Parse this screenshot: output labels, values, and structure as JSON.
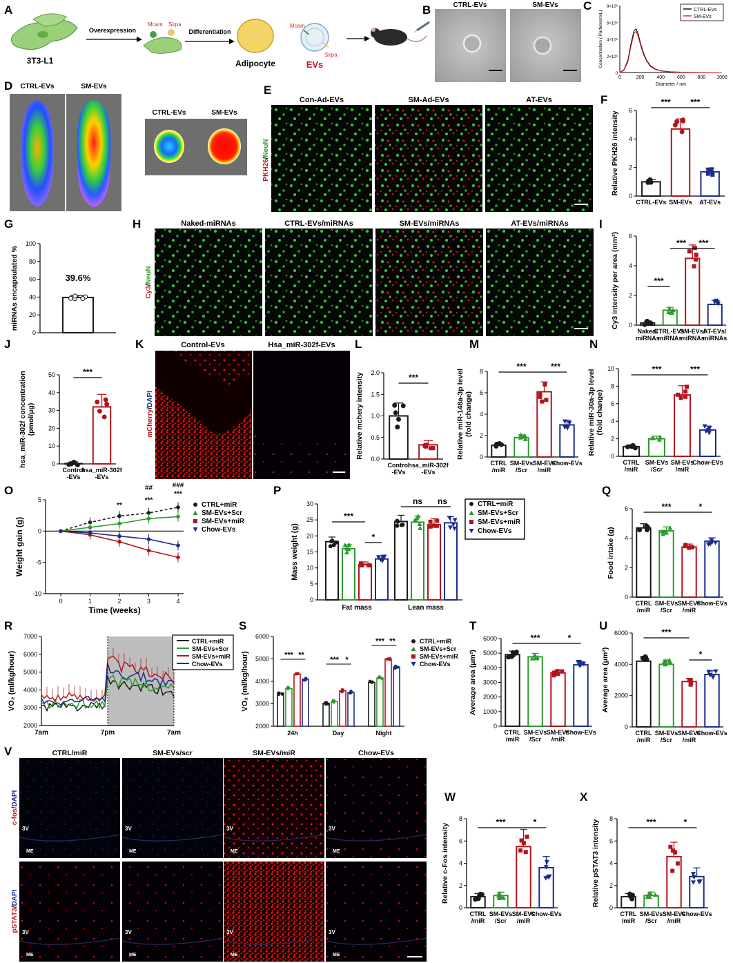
{
  "panels": {
    "A": {
      "letter": "A",
      "cell": "3T3-L1",
      "overexpression": "Overexpression",
      "mcam": "Mcam",
      "sirpa": "Sirpa",
      "differentiation": "Differentiation",
      "adipocyte": "Adipocyte",
      "mcam2": "Mcam",
      "sirpa2": "Sirpa",
      "evs": "EVs"
    },
    "B": {
      "letter": "B",
      "left": "CTRL-EVs",
      "right": "SM-EVs"
    },
    "C": {
      "letter": "C",
      "ylabel": "Concentration ( Particles/mL)",
      "xlabel": "Diameter / nm",
      "legend": [
        "CTRL-EVs",
        "SM-EVs"
      ],
      "yticks": [
        "8×10⁶",
        "6×10⁶",
        "4×10⁶",
        "2×10⁶",
        "0"
      ],
      "xticks": [
        "0",
        "200",
        "400",
        "600",
        "800",
        "1000"
      ]
    },
    "D": {
      "letter": "D",
      "left": "CTRL-EVs",
      "right": "SM-EVs",
      "organ_left": "CTRL-EVs",
      "organ_right": "SM-EVs"
    },
    "E": {
      "letter": "E",
      "titles": [
        "Con-Ad-EVs",
        "SM-Ad-EVs",
        "AT-EVs"
      ],
      "side_a": "PKH26",
      "side_sep": "/",
      "side_b": "NeuN"
    },
    "F": {
      "letter": "F",
      "ylabel": "Relative PKH26 intensity",
      "cats": [
        "CTRL-EVs",
        "SM-EVs",
        "AT-EVs"
      ],
      "yticks": [
        "0",
        "2",
        "4",
        "6"
      ],
      "sig": [
        "***",
        "***"
      ]
    },
    "G": {
      "letter": "G",
      "ylabel": "miRNAs encapsulated %",
      "value_label": "39.6%",
      "yticks": [
        "0",
        "20",
        "40",
        "60",
        "80",
        "100"
      ]
    },
    "H": {
      "letter": "H",
      "titles": [
        "Naked-miRNAs",
        "CTRL-EVs/miRNAs",
        "SM-EVs/miRNAs",
        "AT-EVs/miRNAs"
      ],
      "side_a": "Cy3",
      "side_sep": "/",
      "side_b": "NeuN"
    },
    "I": {
      "letter": "I",
      "ylabel": "Cy3 intensity per area (mm²)",
      "cats": [
        "Naked/ miRNAs",
        "CTRL-EVs/ miRNAs",
        "SM-EVs/ miRNAs",
        "AT-EVs/ miRNAs"
      ],
      "yticks": [
        "0",
        "2",
        "4",
        "6"
      ],
      "sig": [
        "***",
        "***",
        "***"
      ]
    },
    "J": {
      "letter": "J",
      "ylabel1": "hsa_miR-302f concentration",
      "ylabel2": "(pmol/μg)",
      "cats": [
        "Control -EVs",
        "hsa_miR-302f -EVs"
      ],
      "yticks": [
        "0",
        "10",
        "20",
        "30",
        "40",
        "50"
      ],
      "sig": [
        "***"
      ]
    },
    "K": {
      "letter": "K",
      "titles": [
        "Control-EVs",
        "Hsa_miR-302f-EVs"
      ],
      "side_a": "mCherry",
      "side_sep": "/",
      "side_b": "DAPI"
    },
    "L": {
      "letter": "L",
      "ylabel": "Relative mchery intensity",
      "cats": [
        "Control -EVs",
        "hsa_miR-302f -EVs"
      ],
      "yticks": [
        "0.0",
        "0.5",
        "1.0",
        "1.5",
        "2.0"
      ],
      "sig": [
        "***"
      ]
    },
    "M": {
      "letter": "M",
      "ylabel1": "Relative miR-148a-3p level",
      "ylabel2": "(fold change)",
      "cats": [
        "CTRL /miR",
        "SM-EVs /Scr",
        "SM-EVs /miR",
        "Chow-EVs"
      ],
      "yticks": [
        "0",
        "2",
        "4",
        "6",
        "8"
      ],
      "sig": [
        "***",
        "***"
      ]
    },
    "N": {
      "letter": "N",
      "ylabel1": "Relative miR-30a-3p level",
      "ylabel2": "(fold change)",
      "cats": [
        "CTRL /miR",
        "SM-EVs /Scr",
        "SM-EVs /miR",
        "Chow-EVs"
      ],
      "yticks": [
        "0",
        "2",
        "4",
        "6",
        "8",
        "10"
      ],
      "sig": [
        "***",
        "***"
      ]
    },
    "O": {
      "letter": "O",
      "ylabel": "Weight gain (g)",
      "xlabel": "Time (weeks)",
      "xticks": [
        "0",
        "1",
        "2",
        "3",
        "4"
      ],
      "yticks": [
        "5",
        "0",
        "-5",
        "-10"
      ],
      "legend": [
        "CTRL+miR",
        "SM-EVs+Scr",
        "SM-EVs+miR",
        "Chow-EVs"
      ],
      "sig": [
        "**",
        "***",
        "***",
        "##",
        "###"
      ]
    },
    "P": {
      "letter": "P",
      "ylabel": "Mass weight (g)",
      "groups": [
        "Fat mass",
        "Lean mass"
      ],
      "yticks": [
        "0",
        "5",
        "10",
        "15",
        "20",
        "25",
        "30"
      ],
      "legend": [
        "CTRL+miR",
        "SM-EVs+Scr",
        "SM-EVs+miR",
        "Chow-EVs"
      ],
      "sig": [
        "***",
        "*",
        "ns",
        "ns"
      ]
    },
    "Q": {
      "letter": "Q",
      "ylabel": "Food intake (g)",
      "cats": [
        "CTRL /miR",
        "SM-EVs /Scr",
        "SM-EVs /miR",
        "Chow-EVs"
      ],
      "yticks": [
        "0",
        "2",
        "4",
        "6"
      ],
      "sig": [
        "***",
        "*"
      ]
    },
    "R": {
      "letter": "R",
      "ylabel": "VO₂ (ml/kg/hour)",
      "xticks": [
        "7am",
        "7pm",
        "7am"
      ],
      "yticks": [
        "7000",
        "6000",
        "5000",
        "4000",
        "3000",
        "2000"
      ],
      "legend": [
        "CTRL+miR",
        "SM-EVs+Scr",
        "SM-EVs+miR",
        "Chow-EVs"
      ]
    },
    "S": {
      "letter": "S",
      "ylabel": "VO₂ (ml/kg/hour)",
      "groups": [
        "24h",
        "Day",
        "Night"
      ],
      "yticks": [
        "2000",
        "3000",
        "4000",
        "5000",
        "6000"
      ],
      "legend": [
        "CTRL+miR",
        "SM-EVs+Scr",
        "SM-EVs+miR",
        "Chow-EVs"
      ],
      "sig": [
        "***",
        "**",
        "***",
        "*",
        "***",
        "**"
      ]
    },
    "T": {
      "letter": "T",
      "ylabel": "Average area (μm²)",
      "cats": [
        "CTRL /miR",
        "SM-EVs /Scr",
        "SM-EVs /miR",
        "Chow-EVs"
      ],
      "yticks": [
        "0",
        "1000",
        "2000",
        "3000",
        "4000",
        "5000",
        "6000"
      ],
      "sig": [
        "***",
        "*"
      ]
    },
    "U": {
      "letter": "U",
      "ylabel": "Average area (μm²)",
      "cats": [
        "CTRL /miR",
        "SM-EVs /Scr",
        "SM-EVs /miR",
        "Chow-EVs"
      ],
      "yticks": [
        "0",
        "2000",
        "4000",
        "6000"
      ],
      "sig": [
        "***",
        "*"
      ]
    },
    "V": {
      "letter": "V",
      "titles": [
        "CTRL/miR",
        "SM-EVs/scr",
        "SM-EVs/miR",
        "Chow-EVs"
      ],
      "row1_a": "c-fos",
      "row1_b": "DAPI",
      "row2_a": "pSTAT3",
      "row2_b": "DAPI",
      "sep": "/",
      "v3": "3V",
      "me": "ME"
    },
    "W": {
      "letter": "W",
      "ylabel": "Relative c-Fos intensity",
      "cats": [
        "CTRL /miR",
        "SM-EVs /Scr",
        "SM-EVs /miR",
        "Chow-EVs"
      ],
      "yticks": [
        "0",
        "2",
        "4",
        "6",
        "8"
      ],
      "sig": [
        "***",
        "*"
      ]
    },
    "X": {
      "letter": "X",
      "ylabel": "Relative pSTAT3 intensity",
      "cats": [
        "CTRL /miR",
        "SM-EVs /Scr",
        "SM-EVs /miR",
        "Chow-EVs"
      ],
      "yticks": [
        "0",
        "2",
        "4",
        "6",
        "8"
      ],
      "sig": [
        "***",
        "*"
      ]
    }
  },
  "colors": {
    "black": "#1a1a1a",
    "green": "#2e9a2e",
    "red": "#b3141b",
    "blue": "#1c2c8c"
  },
  "chart_data": [
    {
      "panel": "C",
      "type": "line",
      "xlabel": "Diameter / nm",
      "ylabel": "Concentration ( Particles/mL)",
      "xlim": [
        0,
        1000
      ],
      "ylim": [
        0,
        8000000
      ],
      "series": [
        {
          "name": "CTRL-EVs",
          "x": [
            0,
            40,
            80,
            110,
            140,
            160,
            180,
            200,
            230,
            260,
            300,
            350,
            400,
            500,
            600,
            800,
            1000
          ],
          "y": [
            0,
            300000,
            1500000,
            3500000,
            5000000,
            5200000,
            4600000,
            3600000,
            2400000,
            1500000,
            800000,
            400000,
            200000,
            80000,
            30000,
            10000,
            0
          ]
        },
        {
          "name": "SM-EVs",
          "x": [
            0,
            40,
            80,
            110,
            140,
            160,
            180,
            200,
            230,
            260,
            300,
            350,
            400,
            500,
            600,
            800,
            1000
          ],
          "y": [
            0,
            250000,
            1300000,
            3200000,
            4700000,
            4900000,
            4300000,
            3400000,
            2200000,
            1400000,
            700000,
            350000,
            180000,
            70000,
            20000,
            8000,
            0
          ]
        }
      ]
    },
    {
      "panel": "F",
      "type": "bar",
      "ylabel": "Relative PKH26 intensity",
      "categories": [
        "CTRL-EVs",
        "SM-EVs",
        "AT-EVs"
      ],
      "values": [
        1.0,
        4.7,
        1.7
      ],
      "ylim": [
        0,
        6
      ]
    },
    {
      "panel": "G",
      "type": "bar",
      "ylabel": "miRNAs encapsulated %",
      "categories": [
        ""
      ],
      "values": [
        39.6
      ],
      "ylim": [
        0,
        100
      ]
    },
    {
      "panel": "I",
      "type": "bar",
      "ylabel": "Cy3 intensity per area (mm²)",
      "categories": [
        "Naked/ miRNAs",
        "CTRL-EVs/ miRNAs",
        "SM-EVs/ miRNAs",
        "AT-EVs/ miRNAs"
      ],
      "values": [
        0.15,
        1.0,
        4.5,
        1.4
      ],
      "ylim": [
        0,
        6
      ]
    },
    {
      "panel": "J",
      "type": "bar",
      "ylabel": "hsa_miR-302f concentration (pmol/μg)",
      "categories": [
        "Control -EVs",
        "hsa_miR-302f -EVs"
      ],
      "values": [
        0.2,
        32
      ],
      "ylim": [
        0,
        50
      ]
    },
    {
      "panel": "L",
      "type": "bar",
      "ylabel": "Relative mchery intensity",
      "categories": [
        "Control -EVs",
        "hsa_miR-302f -EVs"
      ],
      "values": [
        1.0,
        0.33
      ],
      "ylim": [
        0,
        2
      ]
    },
    {
      "panel": "M",
      "type": "bar",
      "ylabel": "Relative miR-148a-3p level (fold change)",
      "categories": [
        "CTRL /miR",
        "SM-EVs /Scr",
        "SM-EVs /miR",
        "Chow-EVs"
      ],
      "values": [
        1.1,
        1.8,
        6.1,
        3.0
      ],
      "ylim": [
        0,
        8
      ]
    },
    {
      "panel": "N",
      "type": "bar",
      "ylabel": "Relative miR-30a-3p level (fold change)",
      "categories": [
        "CTRL /miR",
        "SM-EVs /Scr",
        "SM-EVs /miR",
        "Chow-EVs"
      ],
      "values": [
        1.1,
        2.0,
        7.0,
        3.0
      ],
      "ylim": [
        0,
        10
      ]
    },
    {
      "panel": "O",
      "type": "line",
      "xlabel": "Time (weeks)",
      "ylabel": "Weight gain (g)",
      "x": [
        0,
        1,
        2,
        3,
        4
      ],
      "ylim": [
        -10,
        5
      ],
      "series": [
        {
          "name": "CTRL+miR",
          "values": [
            0,
            1.4,
            2.4,
            2.9,
            3.8
          ]
        },
        {
          "name": "SM-EVs+Scr",
          "values": [
            0,
            0.6,
            1.2,
            2.0,
            2.3
          ]
        },
        {
          "name": "SM-EVs+miR",
          "values": [
            0,
            -0.6,
            -1.7,
            -3.1,
            -4.2
          ]
        },
        {
          "name": "Chow-EVs",
          "values": [
            0,
            -0.3,
            -0.8,
            -1.3,
            -2.3
          ]
        }
      ]
    },
    {
      "panel": "P",
      "type": "bar",
      "ylabel": "Mass weight (g)",
      "categories": [
        "Fat mass",
        "Lean mass"
      ],
      "ylim": [
        0,
        30
      ],
      "series": [
        {
          "name": "CTRL+miR",
          "values": [
            18.2,
            24.5
          ]
        },
        {
          "name": "SM-EVs+Scr",
          "values": [
            16.0,
            24.3
          ]
        },
        {
          "name": "SM-EVs+miR",
          "values": [
            11.0,
            23.5
          ]
        },
        {
          "name": "Chow-EVs",
          "values": [
            12.8,
            24.1
          ]
        }
      ]
    },
    {
      "panel": "Q",
      "type": "bar",
      "ylabel": "Food intake (g)",
      "categories": [
        "CTRL /miR",
        "SM-EVs /Scr",
        "SM-EVs /miR",
        "Chow-EVs"
      ],
      "values": [
        4.7,
        4.5,
        3.4,
        3.8
      ],
      "ylim": [
        0,
        6
      ]
    },
    {
      "panel": "R",
      "type": "line",
      "ylabel": "VO₂ (ml/kg/hour)",
      "ylim": [
        2000,
        7000
      ],
      "x_label_positions": [
        "7am",
        "7pm",
        "7am"
      ],
      "series": [
        {
          "name": "CTRL+miR",
          "day": 3050,
          "night": 4300
        },
        {
          "name": "SM-EVs+Scr",
          "day": 3200,
          "night": 4500
        },
        {
          "name": "SM-EVs+miR",
          "day": 3600,
          "night": 5400
        },
        {
          "name": "Chow-EVs",
          "day": 3400,
          "night": 5000
        }
      ]
    },
    {
      "panel": "S",
      "type": "bar",
      "ylabel": "VO₂ (ml/kg/hour)",
      "categories": [
        "24h",
        "Day",
        "Night"
      ],
      "ylim": [
        2000,
        6000
      ],
      "series": [
        {
          "name": "CTRL+miR",
          "values": [
            3480,
            3020,
            3950
          ]
        },
        {
          "name": "SM-EVs+Scr",
          "values": [
            3680,
            3100,
            4150
          ]
        },
        {
          "name": "SM-EVs+miR",
          "values": [
            4320,
            3580,
            5000
          ]
        },
        {
          "name": "Chow-EVs",
          "values": [
            4100,
            3510,
            4640
          ]
        }
      ]
    },
    {
      "panel": "T",
      "type": "bar",
      "ylabel": "Average area (μm²)",
      "categories": [
        "CTRL /miR",
        "SM-EVs /Scr",
        "SM-EVs /miR",
        "Chow-EVs"
      ],
      "values": [
        4900,
        4750,
        3650,
        4200
      ],
      "ylim": [
        0,
        6000
      ]
    },
    {
      "panel": "U",
      "type": "bar",
      "ylabel": "Average area (μm²)",
      "categories": [
        "CTRL /miR",
        "SM-EVs /Scr",
        "SM-EVs /miR",
        "Chow-EVs"
      ],
      "values": [
        4200,
        4000,
        2900,
        3350
      ],
      "ylim": [
        0,
        6000
      ]
    },
    {
      "panel": "W",
      "type": "bar",
      "ylabel": "Relative c-Fos intensity",
      "categories": [
        "CTRL /miR",
        "SM-EVs /Scr",
        "SM-EVs /miR",
        "Chow-EVs"
      ],
      "values": [
        1.0,
        1.1,
        5.5,
        3.6
      ],
      "ylim": [
        0,
        8
      ]
    },
    {
      "panel": "X",
      "type": "bar",
      "ylabel": "Relative pSTAT3 intensity",
      "categories": [
        "CTRL /miR",
        "SM-EVs /Scr",
        "SM-EVs /miR",
        "Chow-EVs"
      ],
      "values": [
        1.0,
        1.1,
        4.6,
        2.8
      ],
      "ylim": [
        0,
        8
      ]
    }
  ]
}
